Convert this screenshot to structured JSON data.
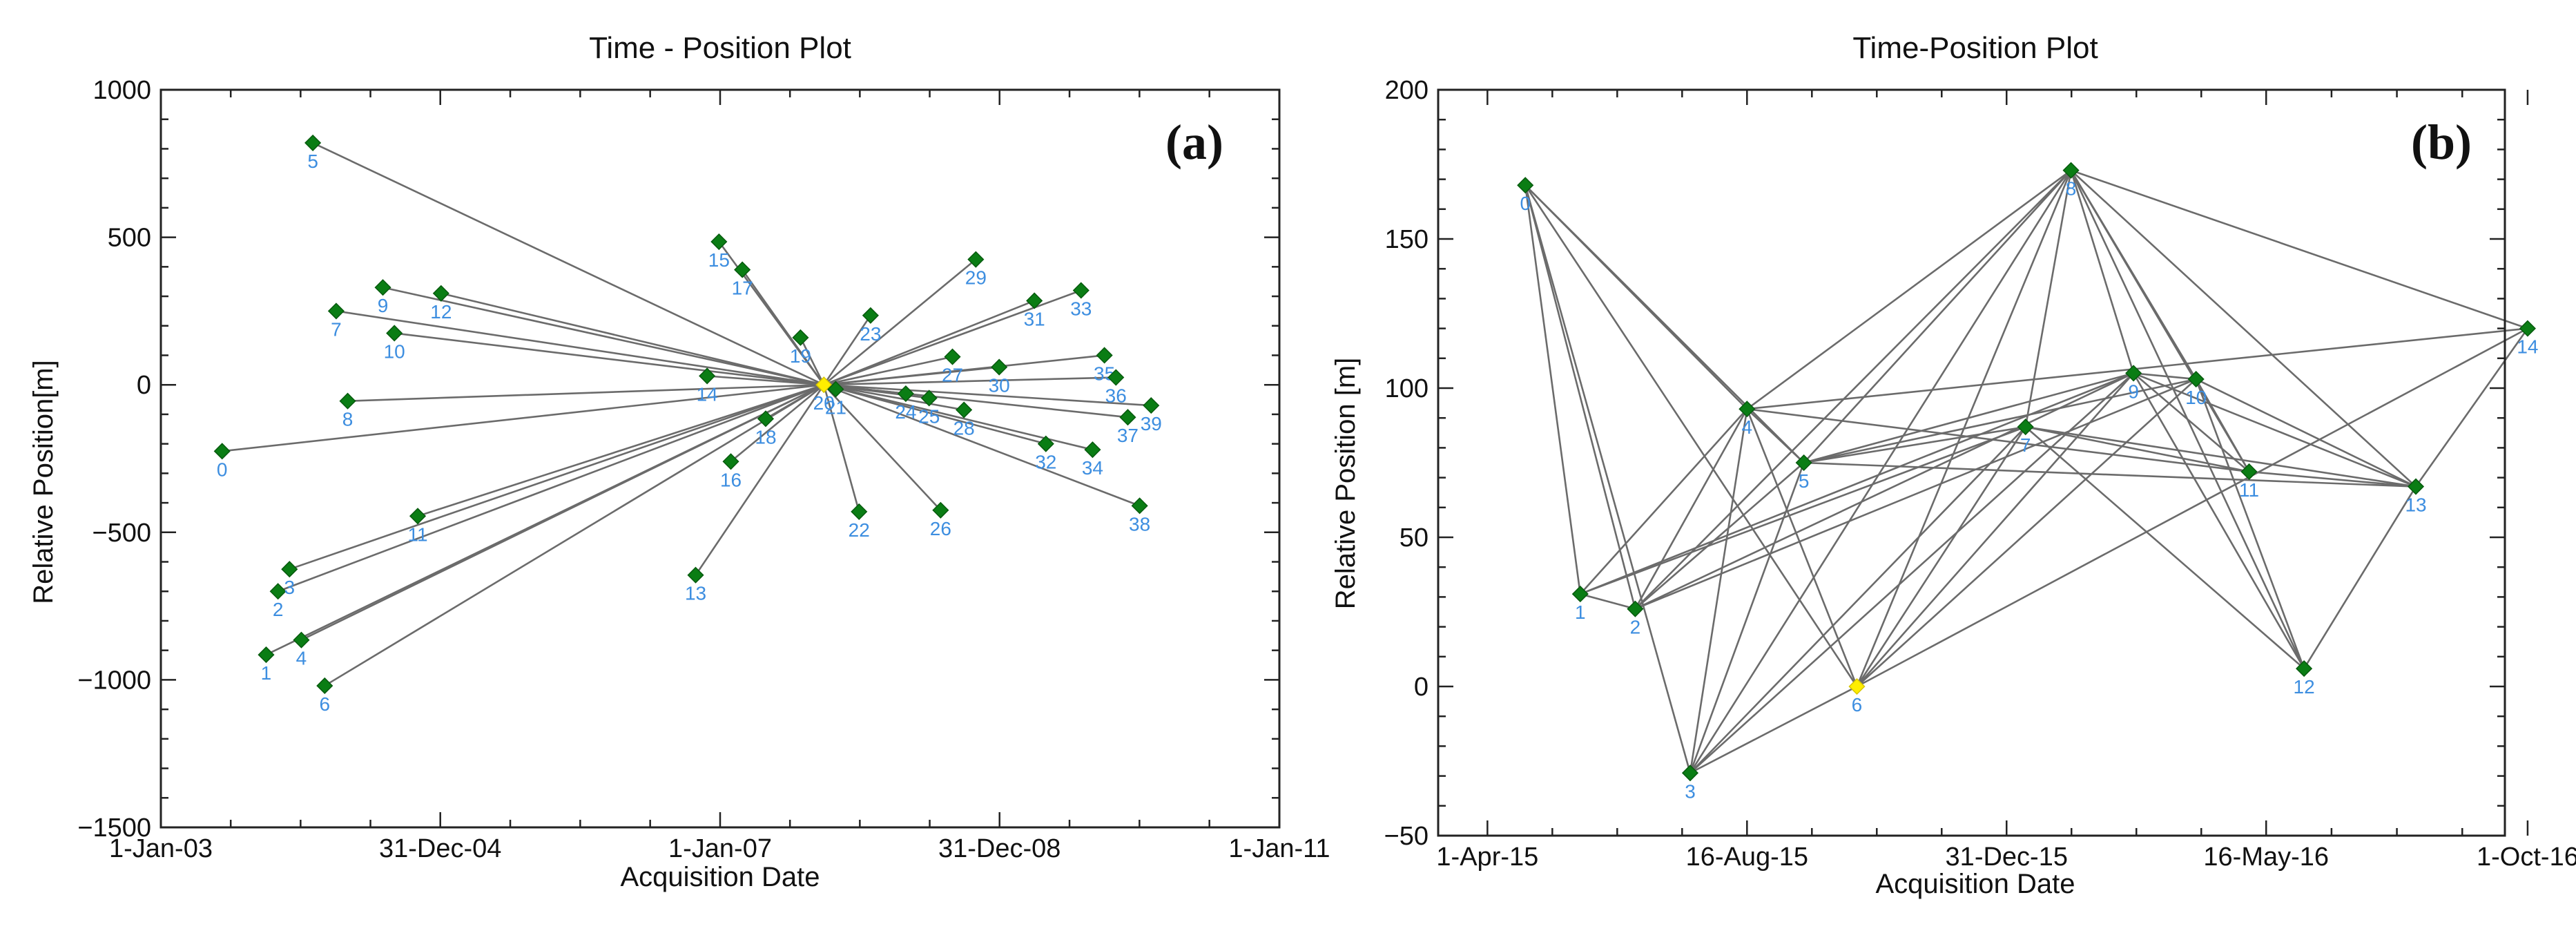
{
  "chart_data": [
    {
      "type": "scatter",
      "panel": "a",
      "title": "Time - Position Plot",
      "panel_label": "(a)",
      "xlabel": "Acquisition Date",
      "ylabel": "Relative Position[m]",
      "xlim": [
        0,
        2922
      ],
      "ylim": [
        -1500,
        1000
      ],
      "x_unit": "days since 1-Jan-03",
      "xticks": [
        {
          "label": "1-Jan-03",
          "value": 0
        },
        {
          "label": "31-Dec-04",
          "value": 730
        },
        {
          "label": "1-Jan-07",
          "value": 1461
        },
        {
          "label": "31-Dec-08",
          "value": 2191
        },
        {
          "label": "1-Jan-11",
          "value": 2922
        }
      ],
      "yticks": [
        {
          "label": "1000",
          "value": 1000
        },
        {
          "label": "500",
          "value": 500
        },
        {
          "label": "0",
          "value": 0
        },
        {
          "label": "−500",
          "value": -500
        },
        {
          "label": "−1000",
          "value": -1000
        },
        {
          "label": "−1500",
          "value": -1500
        }
      ],
      "master": "20",
      "points": [
        {
          "label": "0",
          "x": 160,
          "y": -225
        },
        {
          "label": "1",
          "x": 275,
          "y": -915
        },
        {
          "label": "2",
          "x": 306,
          "y": -700
        },
        {
          "label": "3",
          "x": 336,
          "y": -625
        },
        {
          "label": "4",
          "x": 367,
          "y": -865
        },
        {
          "label": "5",
          "x": 397,
          "y": 820
        },
        {
          "label": "6",
          "x": 428,
          "y": -1020
        },
        {
          "label": "7",
          "x": 458,
          "y": 250
        },
        {
          "label": "8",
          "x": 488,
          "y": -55
        },
        {
          "label": "9",
          "x": 580,
          "y": 330
        },
        {
          "label": "10",
          "x": 610,
          "y": 175
        },
        {
          "label": "11",
          "x": 671,
          "y": -445
        },
        {
          "label": "12",
          "x": 732,
          "y": 310
        },
        {
          "label": "13",
          "x": 1397,
          "y": -645
        },
        {
          "label": "14",
          "x": 1427,
          "y": 30
        },
        {
          "label": "15",
          "x": 1458,
          "y": 485
        },
        {
          "label": "16",
          "x": 1489,
          "y": -260
        },
        {
          "label": "17",
          "x": 1519,
          "y": 390
        },
        {
          "label": "18",
          "x": 1580,
          "y": -115
        },
        {
          "label": "19",
          "x": 1671,
          "y": 160
        },
        {
          "label": "20",
          "x": 1732,
          "y": 0
        },
        {
          "label": "21",
          "x": 1763,
          "y": -15
        },
        {
          "label": "22",
          "x": 1824,
          "y": -430
        },
        {
          "label": "23",
          "x": 1854,
          "y": 235
        },
        {
          "label": "24",
          "x": 1946,
          "y": -30
        },
        {
          "label": "25",
          "x": 2007,
          "y": -45
        },
        {
          "label": "26",
          "x": 2037,
          "y": -425
        },
        {
          "label": "27",
          "x": 2068,
          "y": 95
        },
        {
          "label": "28",
          "x": 2098,
          "y": -85
        },
        {
          "label": "29",
          "x": 2129,
          "y": 425
        },
        {
          "label": "30",
          "x": 2190,
          "y": 60
        },
        {
          "label": "31",
          "x": 2282,
          "y": 285
        },
        {
          "label": "32",
          "x": 2312,
          "y": -200
        },
        {
          "label": "33",
          "x": 2404,
          "y": 320
        },
        {
          "label": "34",
          "x": 2434,
          "y": -220
        },
        {
          "label": "35",
          "x": 2465,
          "y": 100
        },
        {
          "label": "36",
          "x": 2495,
          "y": 25
        },
        {
          "label": "37",
          "x": 2526,
          "y": -110
        },
        {
          "label": "38",
          "x": 2557,
          "y": -410
        },
        {
          "label": "39",
          "x": 2587,
          "y": -70
        }
      ],
      "edges": [
        [
          "0",
          "20"
        ],
        [
          "1",
          "20"
        ],
        [
          "2",
          "20"
        ],
        [
          "3",
          "20"
        ],
        [
          "4",
          "20"
        ],
        [
          "5",
          "20"
        ],
        [
          "6",
          "20"
        ],
        [
          "7",
          "20"
        ],
        [
          "8",
          "20"
        ],
        [
          "9",
          "20"
        ],
        [
          "10",
          "20"
        ],
        [
          "11",
          "20"
        ],
        [
          "12",
          "20"
        ],
        [
          "13",
          "20"
        ],
        [
          "14",
          "20"
        ],
        [
          "15",
          "20"
        ],
        [
          "16",
          "20"
        ],
        [
          "17",
          "20"
        ],
        [
          "18",
          "20"
        ],
        [
          "19",
          "20"
        ],
        [
          "21",
          "20"
        ],
        [
          "22",
          "20"
        ],
        [
          "23",
          "20"
        ],
        [
          "24",
          "20"
        ],
        [
          "25",
          "20"
        ],
        [
          "26",
          "20"
        ],
        [
          "27",
          "20"
        ],
        [
          "28",
          "20"
        ],
        [
          "29",
          "20"
        ],
        [
          "30",
          "20"
        ],
        [
          "31",
          "20"
        ],
        [
          "32",
          "20"
        ],
        [
          "33",
          "20"
        ],
        [
          "34",
          "20"
        ],
        [
          "35",
          "20"
        ],
        [
          "36",
          "20"
        ],
        [
          "37",
          "20"
        ],
        [
          "38",
          "20"
        ],
        [
          "39",
          "20"
        ]
      ]
    },
    {
      "type": "scatter",
      "panel": "b",
      "title": "Time-Position Plot",
      "panel_label": "(b)",
      "xlabel": "Acquisition Date",
      "ylabel": "Relative Position [m]",
      "xlim": [
        0,
        563
      ],
      "ylim": [
        -50,
        200
      ],
      "x_unit": "days since 6-Mar-15",
      "xticks": [
        {
          "label": "1-Apr-15",
          "value": 26
        },
        {
          "label": "16-Aug-15",
          "value": 163
        },
        {
          "label": "31-Dec-15",
          "value": 300
        },
        {
          "label": "16-May-16",
          "value": 437
        },
        {
          "label": "1-Oct-16",
          "value": 575
        }
      ],
      "yticks": [
        {
          "label": "200",
          "value": 200
        },
        {
          "label": "150",
          "value": 150
        },
        {
          "label": "100",
          "value": 100
        },
        {
          "label": "50",
          "value": 50
        },
        {
          "label": "0",
          "value": 0
        },
        {
          "label": "−50",
          "value": -50
        }
      ],
      "master": "6",
      "points": [
        {
          "label": "0",
          "x": 46,
          "y": 168
        },
        {
          "label": "1",
          "x": 75,
          "y": 31
        },
        {
          "label": "2",
          "x": 104,
          "y": 26
        },
        {
          "label": "3",
          "x": 133,
          "y": -29
        },
        {
          "label": "4",
          "x": 163,
          "y": 93
        },
        {
          "label": "5",
          "x": 193,
          "y": 75
        },
        {
          "label": "6",
          "x": 221,
          "y": 0
        },
        {
          "label": "7",
          "x": 310,
          "y": 87
        },
        {
          "label": "8",
          "x": 334,
          "y": 173
        },
        {
          "label": "9",
          "x": 367,
          "y": 105
        },
        {
          "label": "10",
          "x": 400,
          "y": 103
        },
        {
          "label": "11",
          "x": 428,
          "y": 72
        },
        {
          "label": "12",
          "x": 457,
          "y": 6
        },
        {
          "label": "13",
          "x": 516,
          "y": 67
        },
        {
          "label": "14",
          "x": 575,
          "y": 120
        }
      ],
      "edges": [
        [
          "0",
          "1"
        ],
        [
          "0",
          "2"
        ],
        [
          "0",
          "3"
        ],
        [
          "0",
          "4"
        ],
        [
          "0",
          "5"
        ],
        [
          "0",
          "6"
        ],
        [
          "1",
          "2"
        ],
        [
          "1",
          "4"
        ],
        [
          "1",
          "7"
        ],
        [
          "1",
          "9"
        ],
        [
          "2",
          "4"
        ],
        [
          "2",
          "5"
        ],
        [
          "2",
          "8"
        ],
        [
          "2",
          "9"
        ],
        [
          "2",
          "10"
        ],
        [
          "3",
          "4"
        ],
        [
          "3",
          "5"
        ],
        [
          "3",
          "6"
        ],
        [
          "3",
          "7"
        ],
        [
          "3",
          "8"
        ],
        [
          "3",
          "9"
        ],
        [
          "4",
          "5"
        ],
        [
          "4",
          "6"
        ],
        [
          "4",
          "8"
        ],
        [
          "4",
          "11"
        ],
        [
          "4",
          "14"
        ],
        [
          "5",
          "7"
        ],
        [
          "5",
          "8"
        ],
        [
          "5",
          "9"
        ],
        [
          "5",
          "10"
        ],
        [
          "5",
          "13"
        ],
        [
          "6",
          "7"
        ],
        [
          "6",
          "8"
        ],
        [
          "6",
          "9"
        ],
        [
          "6",
          "10"
        ],
        [
          "6",
          "14"
        ],
        [
          "7",
          "8"
        ],
        [
          "7",
          "12"
        ],
        [
          "7",
          "13"
        ],
        [
          "7",
          "11"
        ],
        [
          "8",
          "9"
        ],
        [
          "8",
          "10"
        ],
        [
          "8",
          "11"
        ],
        [
          "8",
          "12"
        ],
        [
          "8",
          "13"
        ],
        [
          "8",
          "14"
        ],
        [
          "9",
          "10"
        ],
        [
          "9",
          "11"
        ],
        [
          "9",
          "12"
        ],
        [
          "9",
          "13"
        ],
        [
          "10",
          "11"
        ],
        [
          "10",
          "12"
        ],
        [
          "10",
          "13"
        ],
        [
          "11",
          "13"
        ],
        [
          "12",
          "13"
        ],
        [
          "13",
          "14"
        ]
      ]
    }
  ],
  "colors": {
    "marker": "#0a7d14",
    "master_marker": "#ffee00",
    "edge": "#6b6b6b",
    "point_label": "#3d8ee0",
    "axis": "#222222"
  }
}
